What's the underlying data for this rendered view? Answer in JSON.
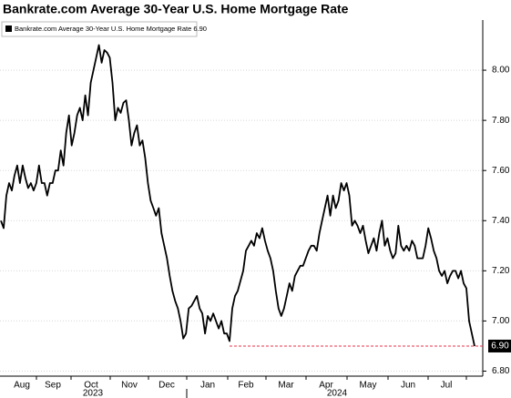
{
  "chart_data": {
    "type": "line",
    "title": "Bankrate.com Average 30-Year U.S. Home Mortgage Rate",
    "month_labels": [
      "Aug",
      "Sep",
      "Oct",
      "Nov",
      "Dec",
      "Jan",
      "Feb",
      "Mar",
      "Apr",
      "May",
      "Jun",
      "Jul"
    ],
    "year_labels": [
      "2023",
      "2024"
    ],
    "series": [
      {
        "name": "Bankrate.com Average 30-Year U.S. Home Mortgage Rate",
        "color": "#000000",
        "last_label": "6.90",
        "values": [
          7.4,
          7.37,
          7.5,
          7.55,
          7.52,
          7.58,
          7.62,
          7.55,
          7.62,
          7.57,
          7.53,
          7.55,
          7.52,
          7.55,
          7.62,
          7.55,
          7.55,
          7.5,
          7.55,
          7.55,
          7.6,
          7.6,
          7.68,
          7.62,
          7.75,
          7.82,
          7.7,
          7.75,
          7.82,
          7.85,
          7.8,
          7.9,
          7.82,
          7.95,
          8.0,
          8.05,
          8.1,
          8.03,
          8.08,
          8.07,
          8.05,
          7.95,
          7.8,
          7.85,
          7.83,
          7.87,
          7.88,
          7.8,
          7.7,
          7.75,
          7.78,
          7.7,
          7.72,
          7.65,
          7.55,
          7.48,
          7.45,
          7.42,
          7.45,
          7.35,
          7.3,
          7.25,
          7.18,
          7.12,
          7.08,
          7.05,
          7.0,
          6.93,
          6.95,
          7.05,
          7.06,
          7.08,
          7.1,
          7.05,
          7.03,
          6.95,
          7.02,
          7.0,
          7.03,
          7.0,
          6.97,
          7.0,
          6.95,
          6.95,
          6.92,
          7.05,
          7.1,
          7.12,
          7.16,
          7.2,
          7.28,
          7.3,
          7.32,
          7.3,
          7.35,
          7.33,
          7.37,
          7.32,
          7.28,
          7.25,
          7.2,
          7.12,
          7.05,
          7.02,
          7.05,
          7.1,
          7.15,
          7.12,
          7.18,
          7.2,
          7.22,
          7.22,
          7.25,
          7.28,
          7.3,
          7.3,
          7.28,
          7.35,
          7.4,
          7.45,
          7.5,
          7.42,
          7.5,
          7.45,
          7.48,
          7.55,
          7.52,
          7.55,
          7.5,
          7.38,
          7.4,
          7.38,
          7.35,
          7.38,
          7.32,
          7.27,
          7.3,
          7.33,
          7.28,
          7.35,
          7.4,
          7.3,
          7.33,
          7.28,
          7.25,
          7.27,
          7.38,
          7.3,
          7.28,
          7.3,
          7.28,
          7.32,
          7.3,
          7.25,
          7.25,
          7.25,
          7.3,
          7.37,
          7.33,
          7.28,
          7.25,
          7.2,
          7.18,
          7.2,
          7.15,
          7.18,
          7.2,
          7.2,
          7.17,
          7.2,
          7.15,
          7.13,
          7.0,
          6.95,
          6.9
        ]
      }
    ],
    "ylim": [
      6.78,
      8.2
    ],
    "yticks": [
      {
        "value": 6.8,
        "label": "6.80"
      },
      {
        "value": 7.0,
        "label": "7.00"
      },
      {
        "value": 7.2,
        "label": "7.20"
      },
      {
        "value": 7.4,
        "label": "7.40"
      },
      {
        "value": 7.6,
        "label": "7.60"
      },
      {
        "value": 7.8,
        "label": "7.80"
      },
      {
        "value": 8.0,
        "label": "8.00"
      }
    ],
    "grid": true
  }
}
